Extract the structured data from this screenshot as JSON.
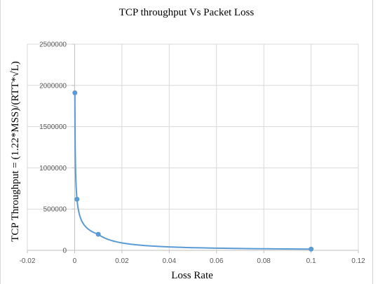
{
  "chart_data": {
    "type": "scatter",
    "title": "TCP throughput Vs Packet Loss",
    "xlabel": "Loss Rate",
    "ylabel": "TCP Throughput = (1.22*MSS)/(RTT*√L)",
    "xlim": [
      -0.02,
      0.12
    ],
    "ylim": [
      0,
      2500000
    ],
    "x_ticks": [
      "-0.02",
      "0",
      "0.02",
      "0.04",
      "0.06",
      "0.08",
      "0.1",
      "0.12"
    ],
    "y_ticks": [
      "0",
      "500000",
      "1000000",
      "1500000",
      "2000000",
      "2500000"
    ],
    "grid": true,
    "legend": "none",
    "smooth_line": true,
    "series": [
      {
        "color": "#5b9bd5",
        "x": [
          0.0001,
          0.001,
          0.01,
          0.1
        ],
        "y": [
          1910000,
          620000,
          195000,
          15000
        ]
      }
    ]
  }
}
